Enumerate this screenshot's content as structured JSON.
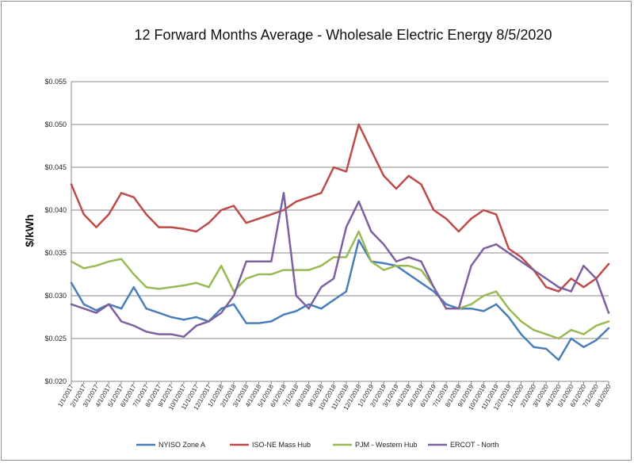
{
  "chart_data": {
    "type": "line",
    "title": "12 Forward Months Average - Wholesale Electric Energy 8/5/2020",
    "ylabel": "$/kWh",
    "xlabel": "",
    "ylim": [
      0.02,
      0.055
    ],
    "ytick_labels": [
      "$0.020",
      "$0.025",
      "$0.030",
      "$0.035",
      "$0.040",
      "$0.045",
      "$0.050",
      "$0.055"
    ],
    "ytick_values": [
      0.02,
      0.025,
      0.03,
      0.035,
      0.04,
      0.045,
      0.05,
      0.055
    ],
    "x_dates": [
      "1/1/2017",
      "2/1/2017",
      "3/1/2017",
      "4/1/2017",
      "5/1/2017",
      "6/1/2017",
      "7/1/2017",
      "8/1/2017",
      "9/1/2017",
      "10/1/2017",
      "11/1/2017",
      "12/1/2017",
      "1/1/2018",
      "2/1/2018",
      "3/1/2018",
      "4/1/2018",
      "5/1/2018",
      "6/1/2018",
      "7/1/2018",
      "8/1/2018",
      "9/1/2018",
      "10/1/2018",
      "11/1/2018",
      "12/1/2018",
      "1/1/2019",
      "2/1/2019",
      "3/1/2019",
      "4/1/2019",
      "5/1/2019",
      "6/1/2019",
      "7/1/2019",
      "8/1/2019",
      "9/1/2019",
      "10/1/2019",
      "11/1/2019",
      "12/1/2019",
      "1/1/2020",
      "2/1/2020",
      "3/1/2020",
      "4/1/2020",
      "5/1/2020",
      "6/1/2020",
      "7/1/2020",
      "8/1/2020"
    ],
    "grid": true,
    "legend_position": "bottom",
    "series": [
      {
        "name": "NYISO Zone A",
        "color": "#4a7ebb",
        "values": [
          0.0315,
          0.029,
          0.0283,
          0.029,
          0.0285,
          0.031,
          0.0285,
          0.028,
          0.0275,
          0.0272,
          0.0275,
          0.027,
          0.0285,
          0.029,
          0.0268,
          0.0268,
          0.027,
          0.0278,
          0.0282,
          0.029,
          0.0285,
          0.0295,
          0.0305,
          0.0365,
          0.034,
          0.0338,
          0.0335,
          0.0325,
          0.0315,
          0.0305,
          0.029,
          0.0285,
          0.0285,
          0.0282,
          0.029,
          0.0275,
          0.0255,
          0.024,
          0.0238,
          0.0225,
          0.025,
          0.024,
          0.0248,
          0.0262
        ]
      },
      {
        "name": "ISO-NE Mass Hub",
        "color": "#be4b48",
        "values": [
          0.043,
          0.0395,
          0.038,
          0.0395,
          0.042,
          0.0415,
          0.0395,
          0.038,
          0.038,
          0.0378,
          0.0375,
          0.0385,
          0.04,
          0.0405,
          0.0385,
          0.039,
          0.0395,
          0.04,
          0.041,
          0.0415,
          0.042,
          0.045,
          0.0445,
          0.05,
          0.047,
          0.044,
          0.0425,
          0.044,
          0.043,
          0.04,
          0.039,
          0.0375,
          0.039,
          0.04,
          0.0395,
          0.0355,
          0.0345,
          0.033,
          0.031,
          0.0305,
          0.032,
          0.031,
          0.032,
          0.0337
        ]
      },
      {
        "name": "PJM - Western Hub",
        "color": "#98b954",
        "values": [
          0.034,
          0.0332,
          0.0335,
          0.034,
          0.0343,
          0.0325,
          0.031,
          0.0308,
          0.031,
          0.0312,
          0.0315,
          0.031,
          0.0335,
          0.0305,
          0.032,
          0.0325,
          0.0325,
          0.033,
          0.033,
          0.033,
          0.0335,
          0.0345,
          0.0345,
          0.0375,
          0.034,
          0.033,
          0.0335,
          0.0335,
          0.033,
          0.031,
          0.0285,
          0.0285,
          0.029,
          0.03,
          0.0305,
          0.0285,
          0.027,
          0.026,
          0.0255,
          0.025,
          0.026,
          0.0255,
          0.0265,
          0.027
        ]
      },
      {
        "name": "ERCOT - North",
        "color": "#7d60a0",
        "values": [
          0.029,
          0.0285,
          0.028,
          0.029,
          0.027,
          0.0265,
          0.0258,
          0.0255,
          0.0255,
          0.0252,
          0.0265,
          0.027,
          0.028,
          0.03,
          0.034,
          0.034,
          0.034,
          0.042,
          0.03,
          0.0285,
          0.031,
          0.032,
          0.038,
          0.041,
          0.0375,
          0.036,
          0.034,
          0.0345,
          0.034,
          0.031,
          0.0285,
          0.0285,
          0.0335,
          0.0355,
          0.036,
          0.035,
          0.034,
          0.033,
          0.032,
          0.031,
          0.0305,
          0.0335,
          0.032,
          0.028
        ]
      }
    ]
  }
}
